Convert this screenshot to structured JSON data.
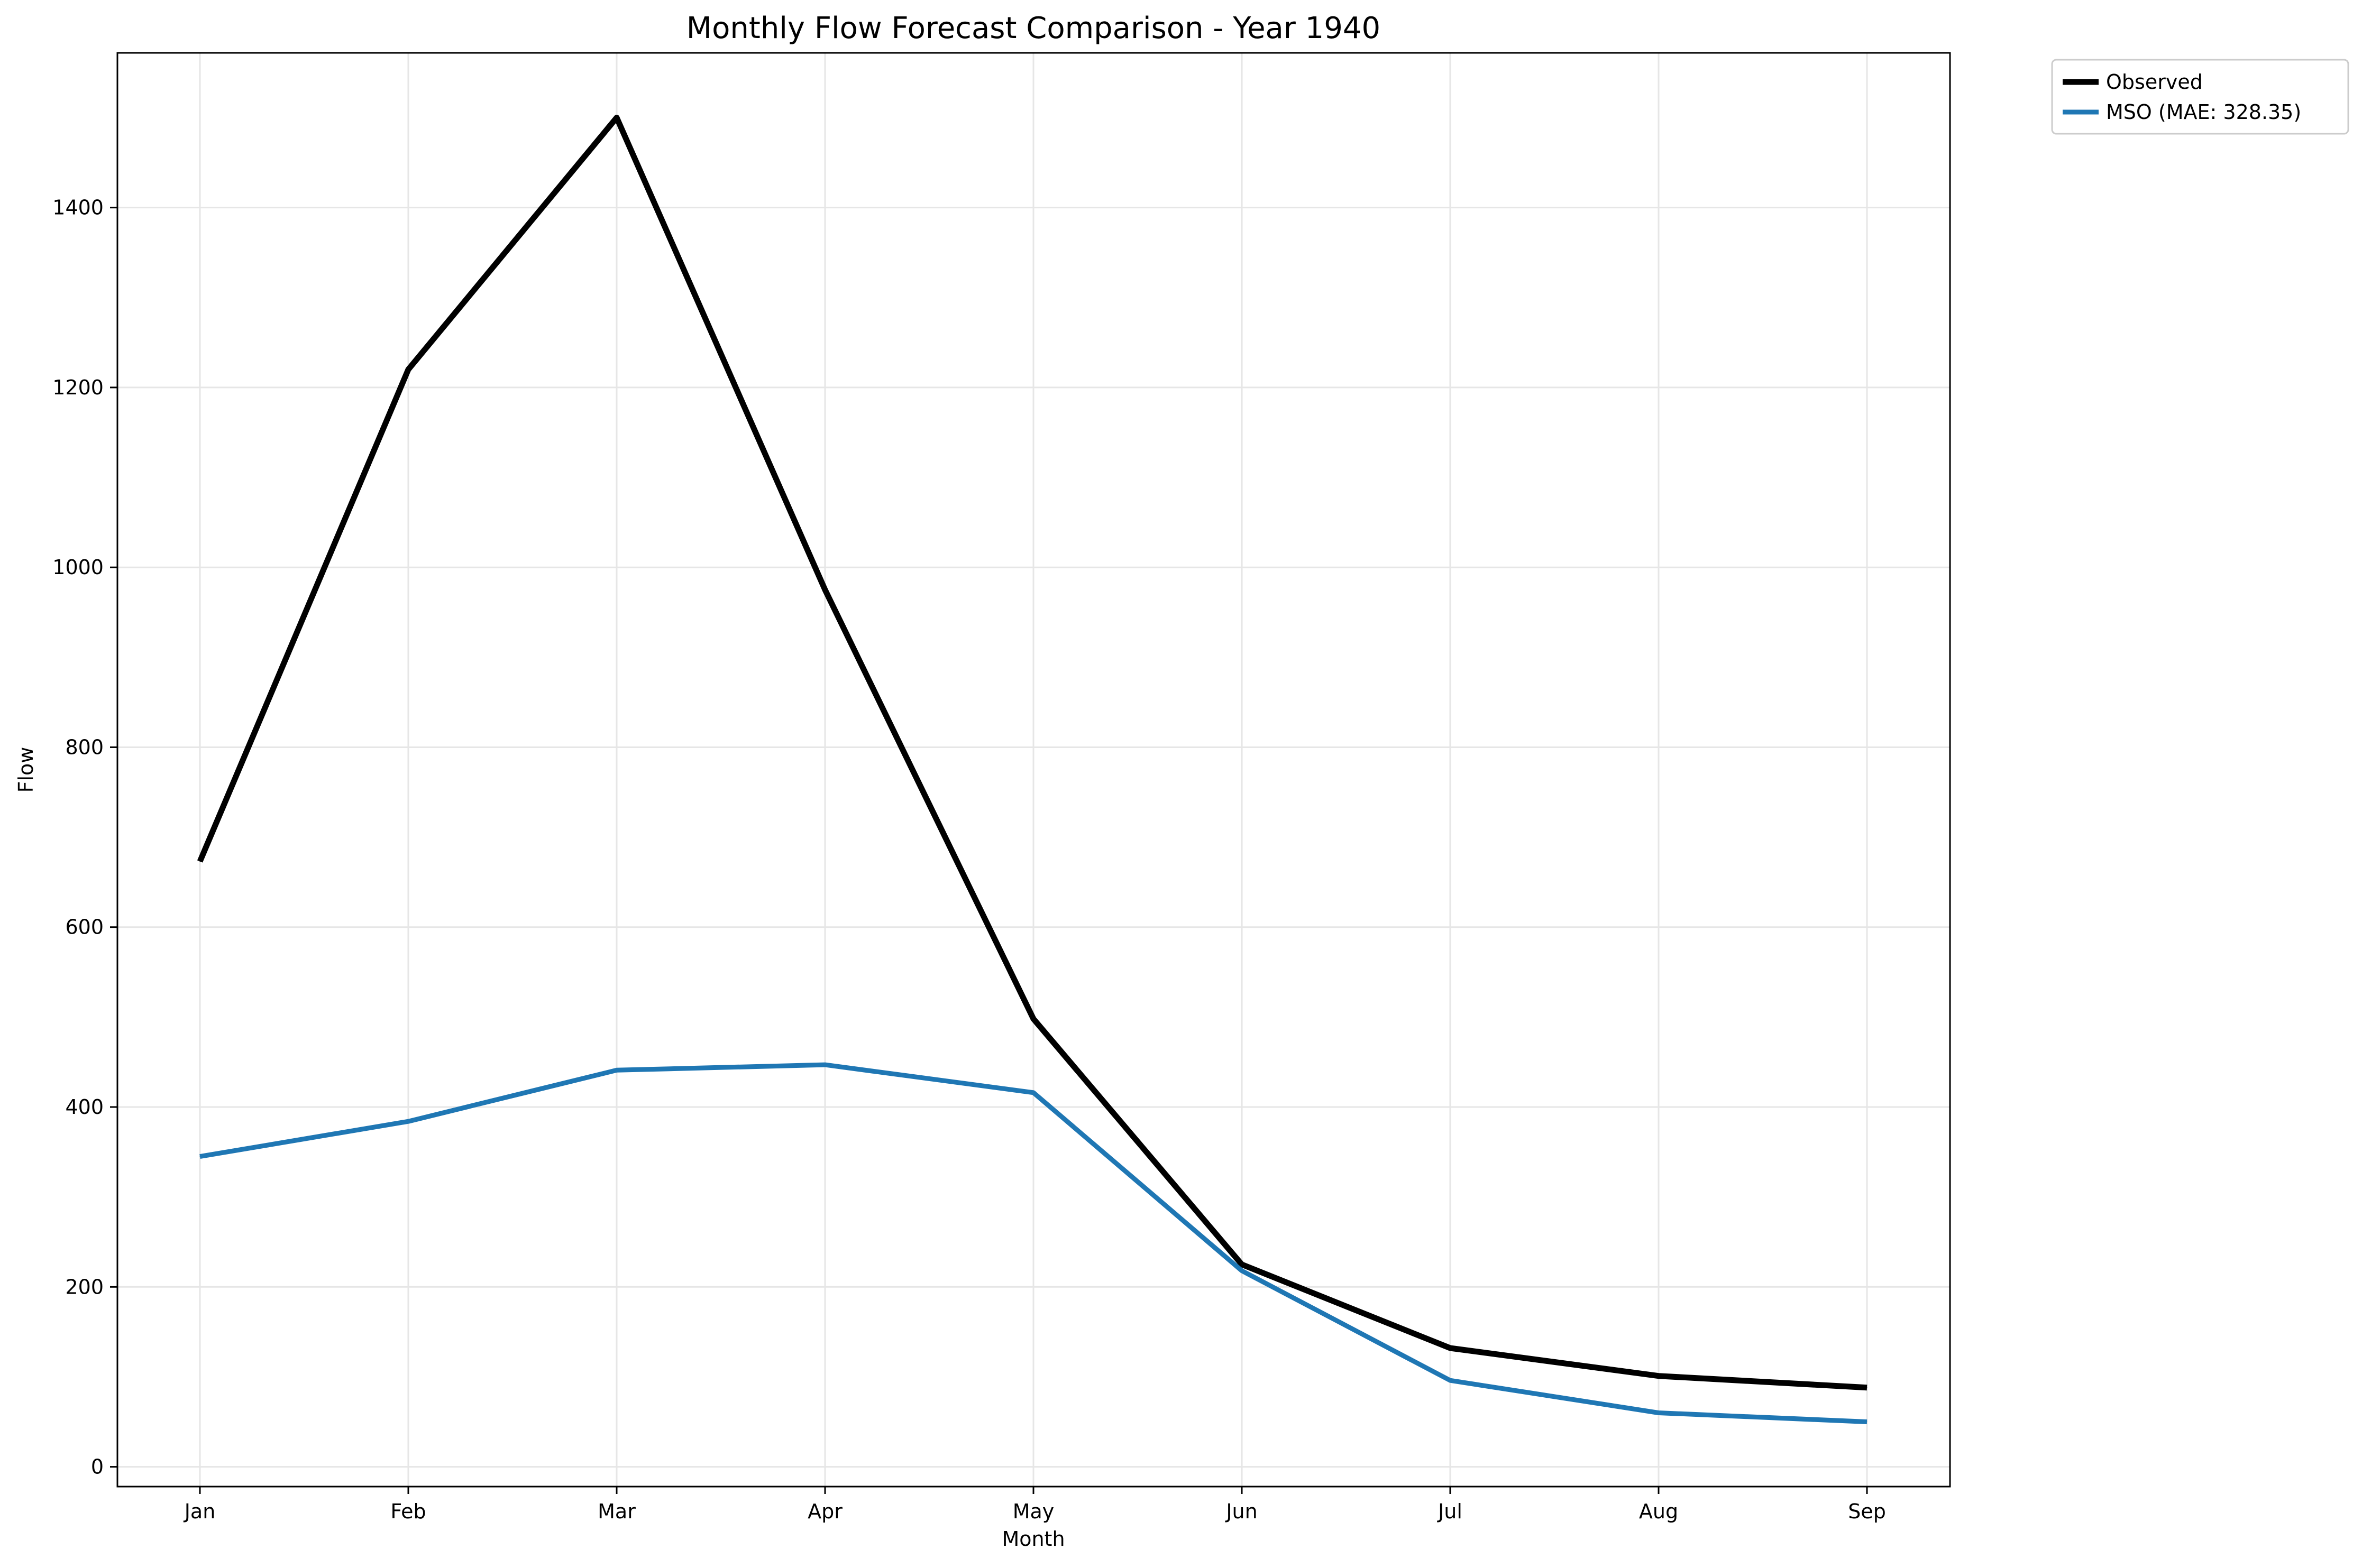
{
  "chart_data": {
    "type": "line",
    "title": "Monthly Flow Forecast Comparison - Year 1940",
    "xlabel": "Month",
    "ylabel": "Flow",
    "categories": [
      "Jan",
      "Feb",
      "Mar",
      "Apr",
      "May",
      "Jun",
      "Jul",
      "Aug",
      "Sep"
    ],
    "ylim": [
      -22,
      1572
    ],
    "yticks": [
      0,
      200,
      400,
      600,
      800,
      1000,
      1200,
      1400
    ],
    "grid": true,
    "legend_position": "outside top-right",
    "series": [
      {
        "name": "Observed",
        "color": "#000000",
        "values": [
          673,
          1220,
          1500,
          975,
          498,
          225,
          132,
          101,
          88
        ]
      },
      {
        "name": "MSO (MAE: 328.35)",
        "color": "#1f77b4",
        "values": [
          345,
          384,
          441,
          447,
          416,
          218,
          96,
          60,
          50
        ]
      }
    ]
  }
}
